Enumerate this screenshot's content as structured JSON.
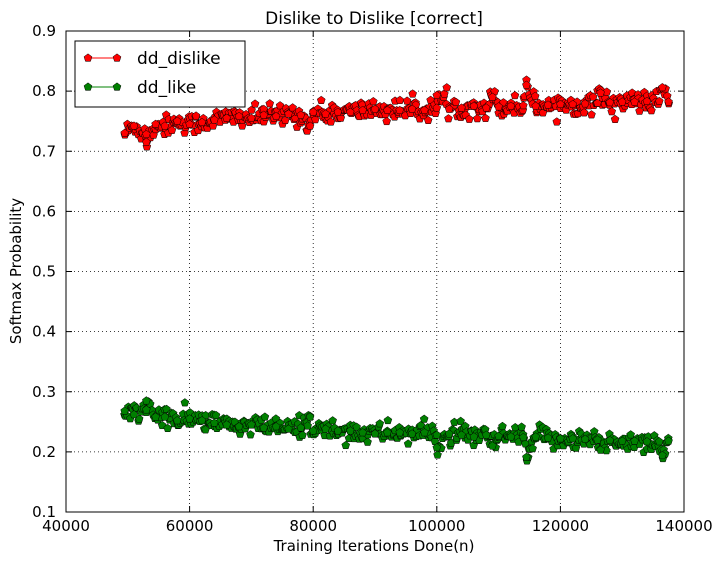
{
  "chart_data": {
    "type": "scatter",
    "title": "Dislike to Dislike [correct]",
    "xlabel": "Training Iterations Done(n)",
    "ylabel": "Softmax Probability",
    "xlim": [
      40000,
      140000
    ],
    "ylim": [
      0.1,
      0.9
    ],
    "xticks": [
      40000,
      60000,
      80000,
      100000,
      120000,
      140000
    ],
    "yticks": [
      0.1,
      0.2,
      0.3,
      0.4,
      0.5,
      0.6,
      0.7,
      0.8,
      0.9
    ],
    "xtick_labels": [
      "40000",
      "60000",
      "80000",
      "100000",
      "120000",
      "140000"
    ],
    "ytick_labels": [
      "0.1",
      "0.2",
      "0.3",
      "0.4",
      "0.5",
      "0.6",
      "0.7",
      "0.8",
      "0.9"
    ],
    "grid": true,
    "legend_position": "top-left",
    "marker": "pentagon",
    "x_range": [
      49500,
      137500
    ],
    "series": [
      {
        "name": "dd_dislike",
        "color": "#ff0000",
        "points": [
          [
            49500,
            0.73
          ],
          [
            51000,
            0.742
          ],
          [
            53000,
            0.728
          ],
          [
            54500,
            0.745
          ],
          [
            56000,
            0.742
          ],
          [
            58000,
            0.75
          ],
          [
            60000,
            0.745
          ],
          [
            62000,
            0.748
          ],
          [
            64000,
            0.752
          ],
          [
            66000,
            0.755
          ],
          [
            68000,
            0.758
          ],
          [
            70000,
            0.755
          ],
          [
            72000,
            0.76
          ],
          [
            74000,
            0.758
          ],
          [
            76000,
            0.762
          ],
          [
            78000,
            0.76
          ],
          [
            80000,
            0.765
          ],
          [
            82000,
            0.762
          ],
          [
            84000,
            0.765
          ],
          [
            86000,
            0.765
          ],
          [
            88000,
            0.768
          ],
          [
            90000,
            0.77
          ],
          [
            92000,
            0.768
          ],
          [
            94000,
            0.768
          ],
          [
            96000,
            0.77
          ],
          [
            98000,
            0.768
          ],
          [
            100000,
            0.772
          ],
          [
            102000,
            0.77
          ],
          [
            104000,
            0.772
          ],
          [
            106000,
            0.775
          ],
          [
            108000,
            0.772
          ],
          [
            110000,
            0.774
          ],
          [
            112000,
            0.775
          ],
          [
            114000,
            0.776
          ],
          [
            116000,
            0.775
          ],
          [
            118000,
            0.777
          ],
          [
            120000,
            0.778
          ],
          [
            122000,
            0.778
          ],
          [
            124000,
            0.779
          ],
          [
            126000,
            0.78
          ],
          [
            128000,
            0.781
          ],
          [
            130000,
            0.782
          ],
          [
            132000,
            0.782
          ],
          [
            134000,
            0.783
          ],
          [
            136000,
            0.783
          ],
          [
            137500,
            0.782
          ],
          [
            53000,
            0.715
          ],
          [
            79500,
            0.742
          ],
          [
            114500,
            0.81
          ],
          [
            136500,
            0.806
          ],
          [
            100000,
            0.793
          ],
          [
            109000,
            0.79
          ],
          [
            126500,
            0.797
          ]
        ]
      },
      {
        "name": "dd_like",
        "color": "#008000",
        "points": [
          [
            49500,
            0.268
          ],
          [
            51000,
            0.262
          ],
          [
            53000,
            0.27
          ],
          [
            54500,
            0.258
          ],
          [
            56000,
            0.258
          ],
          [
            58000,
            0.252
          ],
          [
            60000,
            0.255
          ],
          [
            62000,
            0.252
          ],
          [
            64000,
            0.248
          ],
          [
            66000,
            0.245
          ],
          [
            68000,
            0.242
          ],
          [
            70000,
            0.245
          ],
          [
            72000,
            0.24
          ],
          [
            74000,
            0.242
          ],
          [
            76000,
            0.238
          ],
          [
            78000,
            0.24
          ],
          [
            80000,
            0.235
          ],
          [
            82000,
            0.238
          ],
          [
            84000,
            0.235
          ],
          [
            86000,
            0.235
          ],
          [
            88000,
            0.232
          ],
          [
            90000,
            0.23
          ],
          [
            92000,
            0.232
          ],
          [
            94000,
            0.232
          ],
          [
            96000,
            0.23
          ],
          [
            98000,
            0.232
          ],
          [
            100000,
            0.228
          ],
          [
            102000,
            0.23
          ],
          [
            104000,
            0.228
          ],
          [
            106000,
            0.225
          ],
          [
            108000,
            0.228
          ],
          [
            110000,
            0.226
          ],
          [
            112000,
            0.225
          ],
          [
            114000,
            0.224
          ],
          [
            116000,
            0.225
          ],
          [
            118000,
            0.223
          ],
          [
            120000,
            0.222
          ],
          [
            122000,
            0.222
          ],
          [
            124000,
            0.221
          ],
          [
            126000,
            0.22
          ],
          [
            128000,
            0.219
          ],
          [
            130000,
            0.218
          ],
          [
            132000,
            0.218
          ],
          [
            134000,
            0.217
          ],
          [
            136000,
            0.217
          ],
          [
            137500,
            0.218
          ],
          [
            53000,
            0.285
          ],
          [
            79500,
            0.258
          ],
          [
            114500,
            0.191
          ],
          [
            136500,
            0.194
          ],
          [
            100000,
            0.207
          ],
          [
            109000,
            0.21
          ],
          [
            126500,
            0.203
          ]
        ]
      }
    ]
  }
}
